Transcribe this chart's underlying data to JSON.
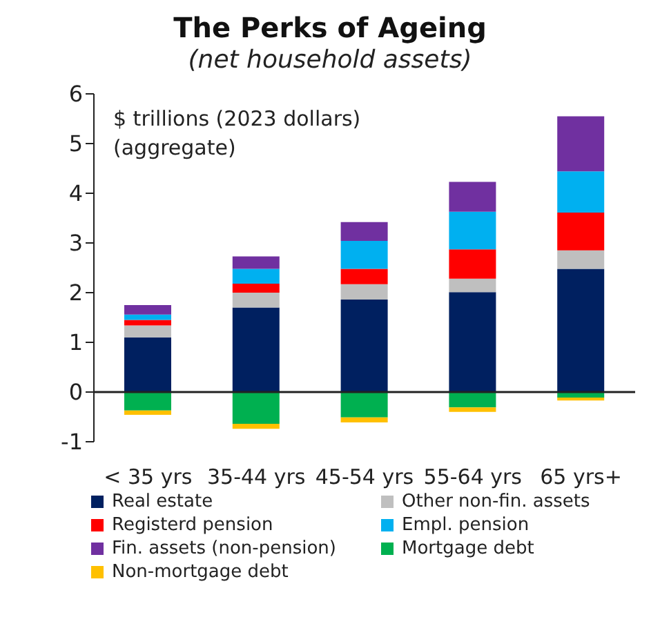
{
  "chart_data": {
    "type": "bar",
    "title": "The Perks of Ageing",
    "subtitle": "(net household assets)",
    "ylabel": "$ trillions (2023 dollars)\n(aggregate)",
    "categories": [
      "< 35 yrs",
      "35-44 yrs",
      "45-54 yrs",
      "55-64 yrs",
      "65 yrs+"
    ],
    "stacked": true,
    "ylim": [
      -1,
      6
    ],
    "yticks": [
      -1,
      0,
      1,
      2,
      3,
      4,
      5,
      6
    ],
    "legend": "bottom",
    "series": [
      {
        "name": "Real estate",
        "color": "#002060",
        "values": [
          1.1,
          1.7,
          1.86,
          2.01,
          2.48
        ]
      },
      {
        "name": "Other non-fin. assets",
        "color": "#bfbfbf",
        "values": [
          0.24,
          0.3,
          0.31,
          0.27,
          0.37
        ]
      },
      {
        "name": "Registerd pension",
        "color": "#ff0000",
        "values": [
          0.11,
          0.18,
          0.31,
          0.59,
          0.76
        ]
      },
      {
        "name": "Empl. pension",
        "color": "#00b0f0",
        "values": [
          0.11,
          0.3,
          0.56,
          0.76,
          0.83
        ]
      },
      {
        "name": "Fin. assets (non-pension)",
        "color": "#7030a0",
        "values": [
          0.19,
          0.25,
          0.38,
          0.6,
          1.11
        ]
      },
      {
        "name": "Mortgage debt",
        "color": "#00b050",
        "values": [
          -0.37,
          -0.64,
          -0.51,
          -0.31,
          -0.11
        ]
      },
      {
        "name": "Non-mortgage debt",
        "color": "#ffc000",
        "values": [
          -0.09,
          -0.1,
          -0.1,
          -0.09,
          -0.06
        ]
      }
    ]
  }
}
